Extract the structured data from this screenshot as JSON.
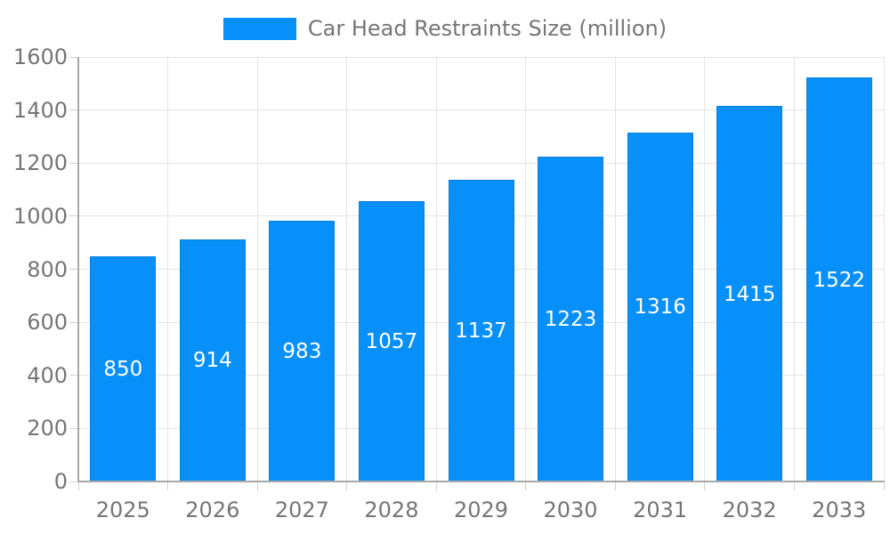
{
  "chart_data": {
    "type": "bar",
    "title": "Car Head Restraints Size (million)",
    "series_name": "Car Head Restraints Size (million)",
    "categories": [
      "2025",
      "2026",
      "2027",
      "2028",
      "2029",
      "2030",
      "2031",
      "2032",
      "2033"
    ],
    "values": [
      850,
      914,
      983,
      1057,
      1137,
      1223,
      1316,
      1415,
      1522
    ],
    "xlabel": "",
    "ylabel": "",
    "ylim": [
      0,
      1600
    ],
    "ytick_step": 200,
    "ytick_labels": [
      "0",
      "200",
      "400",
      "600",
      "800",
      "1000",
      "1200",
      "1400",
      "1600"
    ],
    "grid": true,
    "legend_position": "top-center",
    "colors": {
      "bar_fill": "#0890FA",
      "bar_border": "#0B7FD9",
      "bar_value_text": "#FFFFFF",
      "axis_label_text": "#757575",
      "legend_text": "#757575",
      "gridline": "#E4E4E4",
      "tick_mark": "#D0D0D0",
      "axis_line": "#A8A8A8",
      "background": "#FFFFFF"
    }
  }
}
